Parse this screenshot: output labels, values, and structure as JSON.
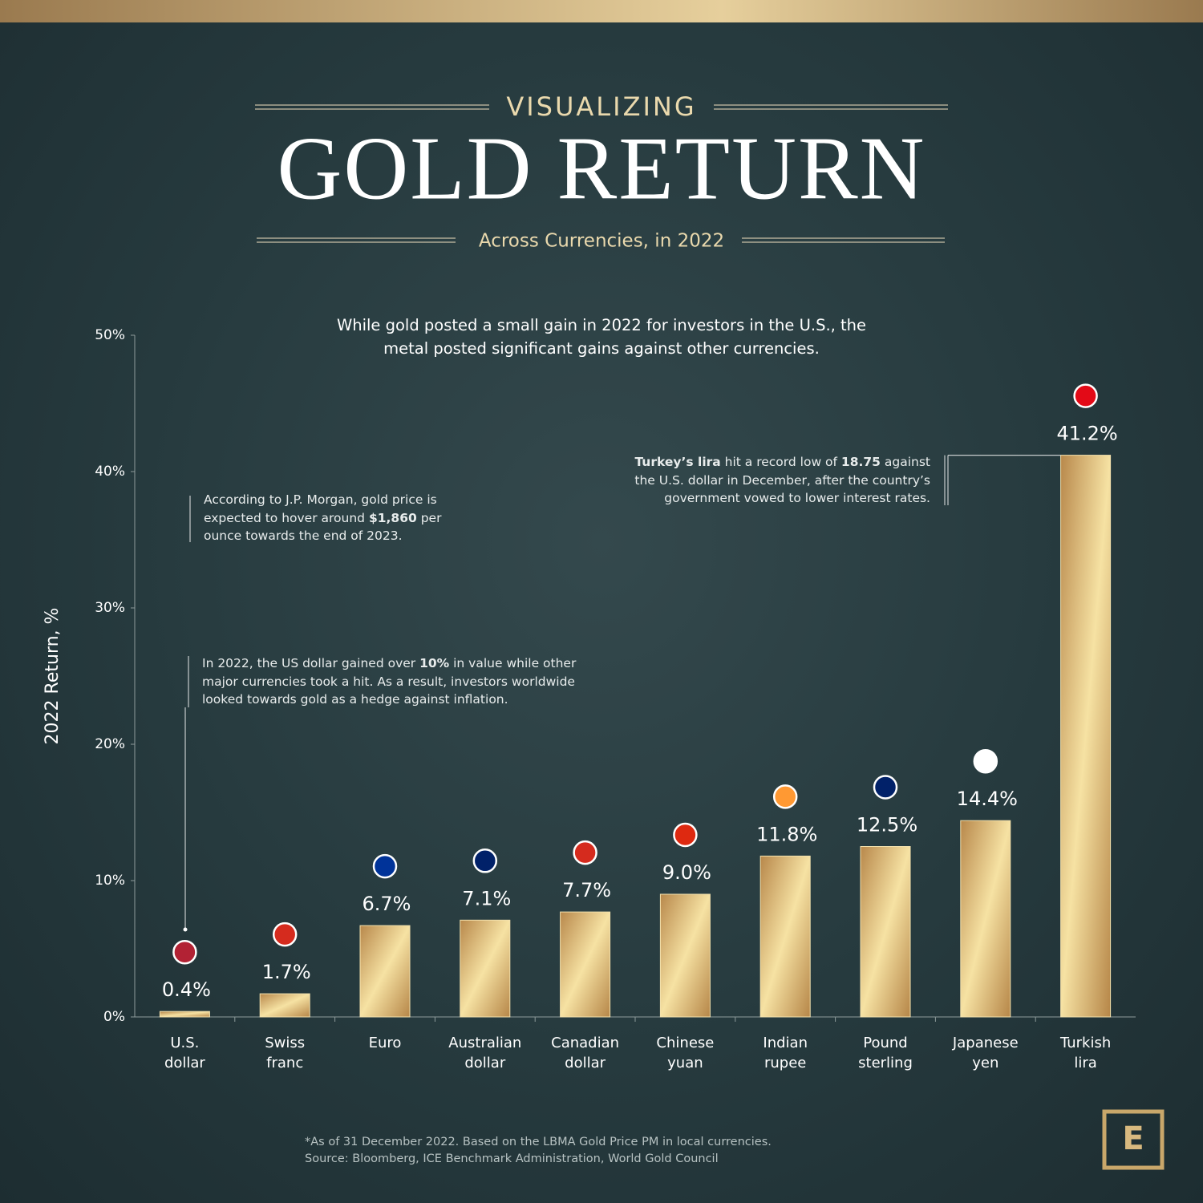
{
  "chart_data": {
    "type": "bar",
    "kicker": "VISUALIZING",
    "title": "GOLD RETURN",
    "subtitle": "Across Currencies, in 2022",
    "intro": "While gold posted a small gain in 2022 for investors in the U.S., the metal posted significant gains against other currencies.",
    "y_label": "2022 Return, %",
    "categories": [
      "U.S. dollar",
      "Swiss franc",
      "Euro",
      "Australian dollar",
      "Canadian dollar",
      "Chinese yuan",
      "Indian rupee",
      "Pound sterling",
      "Japanese yen",
      "Turkish lira"
    ],
    "values": [
      0.4,
      1.7,
      6.7,
      7.1,
      7.7,
      9.0,
      11.8,
      12.5,
      14.4,
      41.2
    ],
    "value_labels": [
      "0.4%",
      "1.7%",
      "6.7%",
      "7.1%",
      "7.7%",
      "9.0%",
      "11.8%",
      "12.5%",
      "14.4%",
      "41.2%"
    ],
    "color": "#d9b574",
    "ylim": [
      0,
      50
    ],
    "yticks": [
      {
        "value": 0,
        "label": "0%"
      },
      {
        "value": 10,
        "label": "10%"
      },
      {
        "value": 20,
        "label": "20%"
      },
      {
        "value": 30,
        "label": "30%"
      },
      {
        "value": 40,
        "label": "40%"
      },
      {
        "value": 50,
        "label": "50%"
      }
    ],
    "annotations": [
      {
        "runs": [
          {
            "text": "According to J.P. Morgan, gold price is expected to hover around ",
            "bold": false
          },
          {
            "text": "$1,860",
            "bold": true
          },
          {
            "text": " per ounce towards the end of 2023.",
            "bold": false
          }
        ]
      },
      {
        "runs": [
          {
            "text": "In 2022, the US dollar gained over ",
            "bold": false
          },
          {
            "text": "10%",
            "bold": true
          },
          {
            "text": " in value while other major currencies took a hit. As a result, investors worldwide looked towards gold as a hedge against inflation.",
            "bold": false
          }
        ]
      },
      {
        "runs": [
          {
            "text": "Turkey’s lira",
            "bold": true
          },
          {
            "text": " hit a record low of ",
            "bold": false
          },
          {
            "text": "18.75",
            "bold": true
          },
          {
            "text": " against the U.S. dollar in December, after the country’s government vowed to lower interest rates.",
            "bold": false
          }
        ]
      }
    ],
    "footnote": "*As of 31 December 2022. Based on the LBMA Gold Price PM in local currencies.",
    "source": "Source: Bloomberg, ICE Benchmark Administration, World Gold Council",
    "logo": "E"
  }
}
